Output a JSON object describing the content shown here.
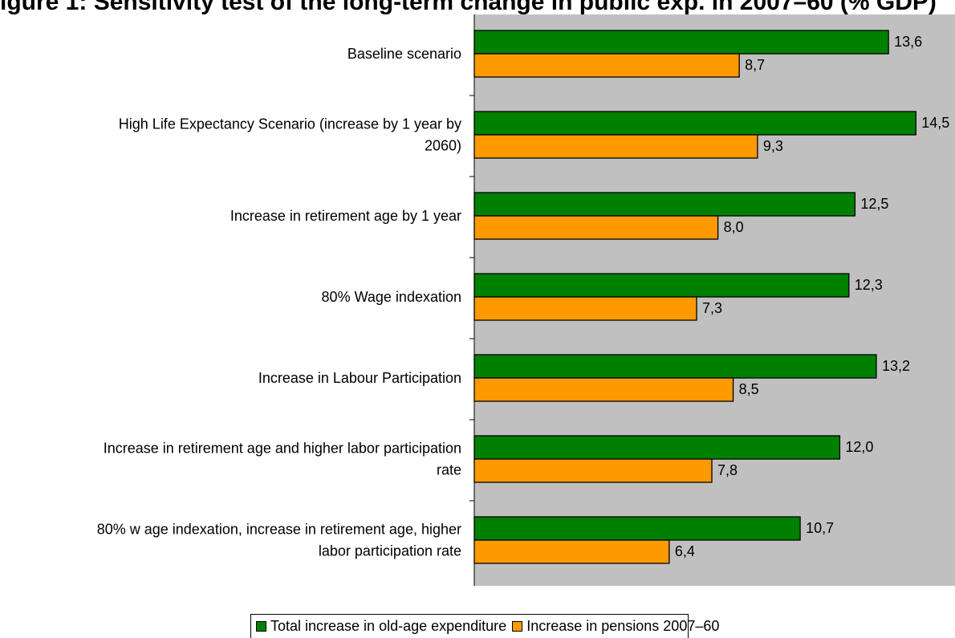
{
  "page_title": "igure 1: Sensitivity test of the long-term change in public exp. in 2007–60 (% GDP)",
  "chart_data": {
    "type": "bar",
    "orientation": "horizontal",
    "title": "igure 1: Sensitivity test of the long-term change in public exp. in 2007–60 (% GDP)",
    "categories": [
      "Baseline scenario",
      "High Life Expectancy Scenario (increase by 1 year by 2060)",
      "Increase in retirement age by 1 year",
      "80% Wage indexation",
      "Increase in Labour Participation",
      "Increase in retirement age and higher labor participation rate",
      "80% w age indexation, increase in retirement age, higher labor participation rate"
    ],
    "category_lines": [
      [
        "Baseline scenario"
      ],
      [
        "High Life Expectancy Scenario (increase by 1 year by",
        "2060)"
      ],
      [
        "Increase in retirement age by 1 year"
      ],
      [
        "80% Wage indexation"
      ],
      [
        "Increase in Labour Participation"
      ],
      [
        "Increase in retirement age and higher labor participation",
        "rate"
      ],
      [
        "80% w age indexation, increase in retirement age, higher",
        "labor participation rate"
      ]
    ],
    "series": [
      {
        "name": "Total increase in old-age expenditure",
        "color": "#008000",
        "values": [
          13.6,
          14.5,
          12.5,
          12.3,
          13.2,
          12.0,
          10.7
        ],
        "labels": [
          "13,6",
          "14,5",
          "12,5",
          "12,3",
          "13,2",
          "12,0",
          "10,7"
        ]
      },
      {
        "name": "Increase in pensions 2007–60",
        "color": "#ff9900",
        "values": [
          8.7,
          9.3,
          8.0,
          7.3,
          8.5,
          7.8,
          6.4
        ],
        "labels": [
          "8,7",
          "9,3",
          "8,0",
          "7,3",
          "8,5",
          "7,8",
          "6,4"
        ]
      }
    ],
    "xlim": [
      0,
      16
    ],
    "plot_background": "#c0c0c0",
    "grid": false,
    "legend_position": "bottom"
  }
}
